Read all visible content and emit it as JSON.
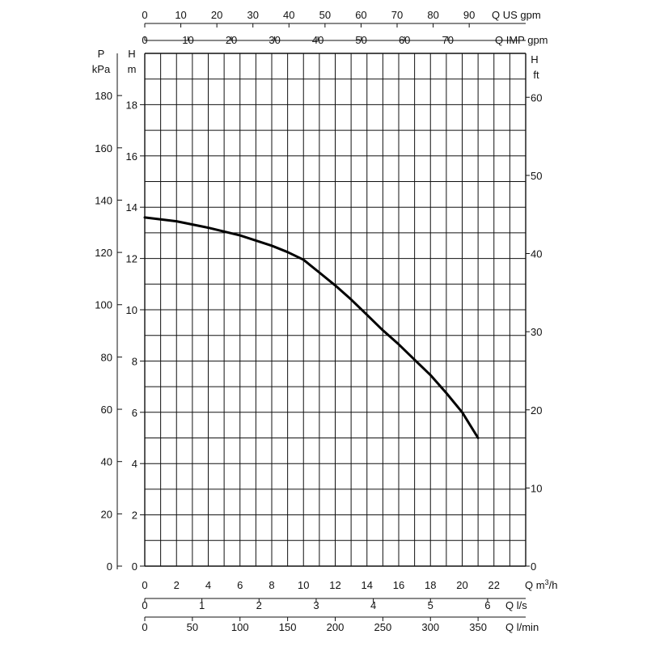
{
  "chart_data": {
    "type": "line",
    "title": "",
    "grid": true,
    "legend": "none",
    "colors": {
      "curve": "#000000",
      "grid": "#111111",
      "text": "#111111",
      "background": "#ffffff"
    },
    "x_primary": {
      "label": "Q m³/h",
      "label_parts": [
        "Q m",
        "3",
        "/h"
      ],
      "range": [
        0,
        24
      ],
      "ticks": [
        "0",
        "2",
        "4",
        "6",
        "8",
        "10",
        "12",
        "14",
        "16",
        "18",
        "20",
        "22"
      ]
    },
    "x_secondary": [
      {
        "label": "Q l/s",
        "ticks": [
          "0",
          "1",
          "2",
          "3",
          "4",
          "5",
          "6"
        ]
      },
      {
        "label": "Q l/min",
        "ticks": [
          "0",
          "50",
          "100",
          "150",
          "200",
          "250",
          "300",
          "350"
        ]
      }
    ],
    "x_top": [
      {
        "label": "Q US gpm",
        "ticks": [
          "0",
          "10",
          "20",
          "30",
          "40",
          "50",
          "60",
          "70",
          "80",
          "90"
        ]
      },
      {
        "label": "Q IMP gpm",
        "ticks": [
          "0",
          "10",
          "20",
          "30",
          "40",
          "50",
          "60",
          "70"
        ]
      }
    ],
    "y_primary": {
      "label_line1": "H",
      "label_line2": "m",
      "range": [
        0,
        20
      ],
      "ticks": [
        "0",
        "2",
        "4",
        "6",
        "8",
        "10",
        "12",
        "14",
        "16",
        "18"
      ]
    },
    "y_left_outer": {
      "label_line1": "P",
      "label_line2": "kPa",
      "ticks": [
        "0",
        "20",
        "40",
        "60",
        "80",
        "100",
        "120",
        "140",
        "160",
        "180"
      ]
    },
    "y_right": {
      "label_line1": "H",
      "label_line2": "ft",
      "ticks": [
        "0",
        "10",
        "20",
        "30",
        "40",
        "50",
        "60"
      ]
    },
    "series": [
      {
        "x": [
          0,
          2,
          4,
          6,
          7,
          8,
          9,
          10,
          11,
          12,
          13,
          14,
          15,
          16,
          17,
          18,
          19,
          20,
          21
        ],
        "y": [
          13.6,
          13.45,
          13.2,
          12.9,
          12.7,
          12.5,
          12.25,
          11.95,
          11.45,
          10.95,
          10.4,
          9.8,
          9.2,
          8.65,
          8.05,
          7.45,
          6.75,
          6.0,
          5.0
        ]
      }
    ]
  }
}
